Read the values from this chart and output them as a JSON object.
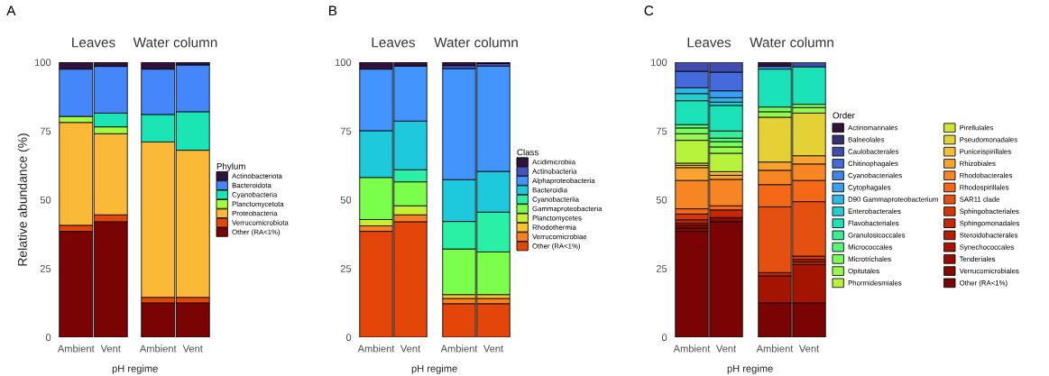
{
  "chart_data": [
    {
      "type": "bar",
      "title": "Leaves",
      "categories": [
        "Ambient",
        "Vent"
      ],
      "stacked": true,
      "ylim": [
        0,
        100
      ],
      "yticks": [
        0,
        25,
        50,
        75,
        100
      ],
      "grid": true,
      "xlabel": "pH regime",
      "ylabel": "Relative abundance (%)",
      "annotations": [
        "A"
      ],
      "series": [
        {
          "color": "#7a0403",
          "values": [
            38.5,
            42
          ]
        },
        {
          "color": "#e4460a",
          "values": [
            2.2,
            2.5
          ]
        },
        {
          "color": "#fbb938",
          "values": [
            37.4,
            29.5
          ]
        },
        {
          "color": "#a4fc3c",
          "values": [
            2.2,
            2.5
          ]
        },
        {
          "color": "#1be5b5",
          "values": [
            0,
            5
          ]
        },
        {
          "color": "#4686fb",
          "values": [
            17.2,
            17
          ]
        },
        {
          "color": "#30123b",
          "values": [
            2.5,
            1.5
          ]
        }
      ]
    },
    {
      "type": "bar",
      "title": "Water column",
      "categories": [
        "Ambient",
        "Vent"
      ],
      "stacked": true,
      "ylim": [
        0,
        100
      ],
      "yticks": [
        0,
        25,
        50,
        75,
        100
      ],
      "grid": true,
      "tick_labels": "x",
      "legend": "right",
      "legend_title": "Phylum",
      "series": [
        {
          "name": "Other (RA<1%)",
          "color": "#7a0403",
          "values": [
            12.5,
            12.5
          ]
        },
        {
          "name": "Verrucomicrobiota",
          "color": "#e4460a",
          "values": [
            2,
            2
          ]
        },
        {
          "name": "Proteobacteria",
          "color": "#fbb938",
          "values": [
            56.5,
            53.5
          ]
        },
        {
          "name": "Planctomycetota",
          "color": "#a4fc3c",
          "values": [
            0,
            0
          ]
        },
        {
          "name": "Cyanobacteria",
          "color": "#1be5b5",
          "values": [
            10,
            14
          ]
        },
        {
          "name": "Bacteroidota",
          "color": "#4686fb",
          "values": [
            16.5,
            17
          ]
        },
        {
          "name": "Actinobacteriota",
          "color": "#30123b",
          "values": [
            2.5,
            1
          ]
        }
      ]
    },
    {
      "type": "bar",
      "title": "Leaves",
      "categories": [
        "Ambient",
        "Vent"
      ],
      "stacked": true,
      "ylim": [
        0,
        100
      ],
      "yticks": [
        0,
        25,
        50,
        75,
        100
      ],
      "grid": true,
      "xlabel": "pH regime",
      "annotations": [
        "B"
      ],
      "series": [
        {
          "color": "#e4460a",
          "values": [
            38.5,
            42
          ]
        },
        {
          "color": "#fb8022",
          "values": [
            2,
            2.5
          ]
        },
        {
          "color": "#f8c231",
          "values": [
            0,
            0
          ]
        },
        {
          "color": "#c8ef34",
          "values": [
            2.3,
            3.3
          ]
        },
        {
          "color": "#7cff4b",
          "values": [
            15.3,
            8.7
          ]
        },
        {
          "color": "#2af0a5",
          "values": [
            0,
            4.4
          ]
        },
        {
          "color": "#1fc9dd",
          "values": [
            17,
            17.7
          ]
        },
        {
          "color": "#4294ff",
          "values": [
            22.4,
            20
          ]
        },
        {
          "color": "#4454c4",
          "values": [
            0,
            0
          ]
        },
        {
          "color": "#30123b",
          "values": [
            2.5,
            1.4
          ]
        }
      ]
    },
    {
      "type": "bar",
      "title": "Water column",
      "categories": [
        "Ambient",
        "Vent"
      ],
      "stacked": true,
      "ylim": [
        0,
        100
      ],
      "yticks": [
        0,
        25,
        50,
        75,
        100
      ],
      "grid": true,
      "tick_labels": "x",
      "legend": "right",
      "legend_title": "Class",
      "series": [
        {
          "name": "Other (RA<1%)",
          "color": "#e4460a",
          "values": [
            12.2,
            12.2
          ]
        },
        {
          "name": "Verrucomicrobiae",
          "color": "#fb8022",
          "values": [
            1.9,
            1.9
          ]
        },
        {
          "name": "Rhodothermia",
          "color": "#f8c231",
          "values": [
            1.4,
            1.4
          ]
        },
        {
          "name": "Planctomycetes",
          "color": "#c8ef34",
          "values": [
            0,
            0
          ]
        },
        {
          "name": "Gammaproteobacteria",
          "color": "#7cff4b",
          "values": [
            16.6,
            15.5
          ]
        },
        {
          "name": "Cyanobacteriia",
          "color": "#2af0a5",
          "values": [
            10,
            14.5
          ]
        },
        {
          "name": "Bacteroidia",
          "color": "#1fc9dd",
          "values": [
            15.2,
            14.8
          ]
        },
        {
          "name": "Alphaproteobacteria",
          "color": "#4294ff",
          "values": [
            40.4,
            38.3
          ]
        },
        {
          "name": "Actinobacteria",
          "color": "#4454c4",
          "values": [
            1.1,
            0.9
          ]
        },
        {
          "name": "Acidimicrobiia",
          "color": "#30123b",
          "values": [
            1.2,
            0.5
          ]
        }
      ]
    },
    {
      "type": "bar",
      "title": "Leaves",
      "categories": [
        "Ambient",
        "Vent"
      ],
      "stacked": true,
      "ylim": [
        0,
        100
      ],
      "yticks": [
        0,
        25,
        50,
        75,
        100
      ],
      "grid": true,
      "xlabel": "pH regime",
      "annotations": [
        "C"
      ],
      "series": [
        {
          "color": "#7a0403",
          "values": [
            38.5,
            42
          ]
        },
        {
          "color": "#880902",
          "values": [
            1.2,
            1.5
          ]
        },
        {
          "color": "#960e02",
          "values": [
            1.0,
            0
          ]
        },
        {
          "color": "#a51401",
          "values": [
            0.8,
            0
          ]
        },
        {
          "color": "#b51d02",
          "values": [
            0,
            0
          ]
        },
        {
          "color": "#c52604",
          "values": [
            1.2,
            2.8
          ]
        },
        {
          "color": "#d43809",
          "values": [
            2.1,
            0
          ]
        },
        {
          "color": "#e45010",
          "values": [
            0,
            0
          ]
        },
        {
          "color": "#f46818",
          "values": [
            1.9,
            1.5
          ]
        },
        {
          "color": "#f88523",
          "values": [
            10.3,
            9.6
          ]
        },
        {
          "color": "#faa22f",
          "values": [
            4.7,
            1.5
          ]
        },
        {
          "color": "#f7bd38",
          "values": [
            0.8,
            1.3
          ]
        },
        {
          "color": "#e4d136",
          "values": [
            0.8,
            0
          ]
        },
        {
          "color": "#d1e535",
          "values": [
            0,
            0
          ]
        },
        {
          "color": "#b7f23c",
          "values": [
            8.3,
            6.7
          ]
        },
        {
          "color": "#97f74c",
          "values": [
            2.4,
            2.3
          ]
        },
        {
          "color": "#78fd5b",
          "values": [
            2.1,
            1.9
          ]
        },
        {
          "color": "#58f678",
          "values": [
            1.2,
            1.3
          ]
        },
        {
          "color": "#37ed99",
          "values": [
            0,
            2.6
          ]
        },
        {
          "color": "#1be2b9",
          "values": [
            8.7,
            9.3
          ]
        },
        {
          "color": "#25ccd1",
          "values": [
            2.6,
            1.2
          ]
        },
        {
          "color": "#30b7ea",
          "values": [
            2.1,
            1.6
          ]
        },
        {
          "color": "#389ff4",
          "values": [
            0,
            2.5
          ]
        },
        {
          "color": "#3e85e7",
          "values": [
            0,
            0
          ]
        },
        {
          "color": "#446adb",
          "values": [
            6.0,
            6.8
          ]
        },
        {
          "color": "#404dae",
          "values": [
            3.3,
            3.6
          ]
        },
        {
          "color": "#383075",
          "values": [
            0,
            0
          ]
        },
        {
          "color": "#30123b",
          "values": [
            0,
            0
          ]
        }
      ]
    },
    {
      "type": "bar",
      "title": "Water column",
      "categories": [
        "Ambient",
        "Vent"
      ],
      "stacked": true,
      "ylim": [
        0,
        100
      ],
      "yticks": [
        0,
        25,
        50,
        75,
        100
      ],
      "grid": true,
      "tick_labels": "x",
      "legend": "right",
      "legend_title": "Order",
      "series": [
        {
          "name": "Other (RA<1%)",
          "color": "#7a0403",
          "values": [
            12.5,
            12.5
          ]
        },
        {
          "name": "Verrucomicrobiales",
          "color": "#880902",
          "values": [
            0,
            0
          ]
        },
        {
          "name": "Tenderiales",
          "color": "#960e02",
          "values": [
            0,
            0
          ]
        },
        {
          "name": "Synechococcales",
          "color": "#a51401",
          "values": [
            9.8,
            13.9
          ]
        },
        {
          "name": "Steroidobacterales",
          "color": "#b51d02",
          "values": [
            0,
            1.1
          ]
        },
        {
          "name": "Sphingomonadales",
          "color": "#c52604",
          "values": [
            1.2,
            0.8
          ]
        },
        {
          "name": "Sphingobacteriales",
          "color": "#d43809",
          "values": [
            0,
            1.2
          ]
        },
        {
          "name": "SAR11 clade",
          "color": "#e45010",
          "values": [
            23.9,
            19.8
          ]
        },
        {
          "name": "Rhodospirillales",
          "color": "#f46818",
          "values": [
            8.1,
            7.7
          ]
        },
        {
          "name": "Rhodobacterales",
          "color": "#f88523",
          "values": [
            5.2,
            6.0
          ]
        },
        {
          "name": "Rhizobiales",
          "color": "#faa22f",
          "values": [
            3.0,
            3.0
          ]
        },
        {
          "name": "Puniceispirillales",
          "color": "#f7bd38",
          "values": [
            0,
            0
          ]
        },
        {
          "name": "Pseudomonadales",
          "color": "#e4d136",
          "values": [
            16.3,
            15.5
          ]
        },
        {
          "name": "Pirellulales",
          "color": "#d1e535",
          "values": [
            0,
            0
          ]
        },
        {
          "name": "Phormidesmiales",
          "color": "#b7f23c",
          "values": [
            0,
            0
          ]
        },
        {
          "name": "Opitutales",
          "color": "#97f74c",
          "values": [
            2.0,
            2.0
          ]
        },
        {
          "name": "Microtrichales",
          "color": "#78fd5b",
          "values": [
            1.7,
            1.2
          ]
        },
        {
          "name": "Micrococcales",
          "color": "#58f678",
          "values": [
            0,
            0
          ]
        },
        {
          "name": "Granulosicoccales",
          "color": "#37ed99",
          "values": [
            0,
            0
          ]
        },
        {
          "name": "Flavobacteriales",
          "color": "#1be2b9",
          "values": [
            13.8,
            13.6
          ]
        },
        {
          "name": "Enterobacterales",
          "color": "#25ccd1",
          "values": [
            0,
            0
          ]
        },
        {
          "name": "D90 Gammaproteobacterium",
          "color": "#30b7ea",
          "values": [
            0,
            0
          ]
        },
        {
          "name": "Cytophagales",
          "color": "#389ff4",
          "values": [
            0,
            0
          ]
        },
        {
          "name": "Cyanobacteriales",
          "color": "#3e85e7",
          "values": [
            1.0,
            0
          ]
        },
        {
          "name": "Chitinophagales",
          "color": "#446adb",
          "values": [
            0,
            0
          ]
        },
        {
          "name": "Caulobacterales",
          "color": "#404dae",
          "values": [
            0,
            1.7
          ]
        },
        {
          "name": "Balneolales",
          "color": "#383075",
          "values": [
            0,
            0
          ]
        },
        {
          "name": "Actinomarinales",
          "color": "#30123b",
          "values": [
            1.5,
            0
          ]
        }
      ]
    }
  ]
}
